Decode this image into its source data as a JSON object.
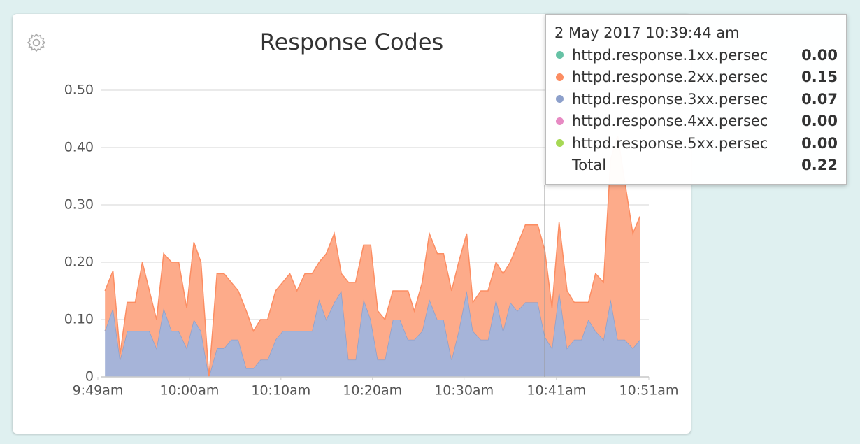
{
  "chart_data": {
    "type": "stacked_area",
    "title": "Response Codes",
    "xlim": [
      49,
      111
    ],
    "xticks": [
      {
        "value": 49,
        "label": "9:49am"
      },
      {
        "value": 59.3,
        "label": "10:00am"
      },
      {
        "value": 69.6,
        "label": "10:10am"
      },
      {
        "value": 79.9,
        "label": "10:20am"
      },
      {
        "value": 90.2,
        "label": "10:30am"
      },
      {
        "value": 100.6,
        "label": "10:41am"
      },
      {
        "value": 111,
        "label": "10:51am"
      }
    ],
    "ylim": [
      0,
      0.5
    ],
    "yticks": [
      0,
      {
        "value": 0.1,
        "label": "0.10"
      },
      {
        "value": 0.2,
        "label": "0.20"
      },
      {
        "value": 0.3,
        "label": "0.30"
      },
      {
        "value": 0.4,
        "label": "0.40"
      },
      {
        "value": 0.5,
        "label": "0.50"
      }
    ],
    "grid": true,
    "x": [
      49.8,
      50.7,
      51.5,
      52.3,
      53.2,
      54.0,
      54.8,
      55.6,
      56.4,
      57.3,
      58.1,
      59.0,
      59.8,
      60.6,
      61.5,
      62.4,
      63.2,
      64.0,
      64.8,
      65.7,
      66.5,
      67.3,
      68.1,
      69.0,
      69.8,
      70.6,
      71.4,
      72.3,
      73.1,
      73.9,
      74.7,
      75.6,
      76.4,
      77.2,
      78.0,
      78.9,
      79.7,
      80.5,
      81.3,
      82.2,
      83.0,
      83.9,
      84.6,
      85.5,
      86.3,
      87.2,
      87.9,
      88.8,
      89.6,
      90.5,
      91.2,
      92.1,
      92.9,
      93.8,
      94.6,
      95.4,
      96.2,
      97.1,
      97.9,
      98.5,
      99.3,
      100.1,
      100.9,
      101.8,
      102.6,
      103.4,
      104.2,
      105.0,
      105.9,
      106.7,
      107.5,
      108.3,
      109.2,
      110.0
    ],
    "series": [
      {
        "name": "httpd.response.3xx.persec",
        "color": "#8da0cb",
        "fill": "#a6b4d9",
        "values": [
          0.08,
          0.12,
          0.03,
          0.08,
          0.08,
          0.08,
          0.08,
          0.05,
          0.12,
          0.08,
          0.08,
          0.05,
          0.1,
          0.08,
          0,
          0.05,
          0.05,
          0.065,
          0.065,
          0.015,
          0.015,
          0.03,
          0.03,
          0.065,
          0.08,
          0.08,
          0.08,
          0.08,
          0.08,
          0.135,
          0.1,
          0.13,
          0.15,
          0.03,
          0.03,
          0.135,
          0.1,
          0.03,
          0.03,
          0.1,
          0.1,
          0.065,
          0.065,
          0.08,
          0.135,
          0.1,
          0.1,
          0.03,
          0.08,
          0.15,
          0.08,
          0.065,
          0.065,
          0.135,
          0.08,
          0.13,
          0.115,
          0.13,
          0.13,
          0.13,
          0.07,
          0.05,
          0.15,
          0.05,
          0.065,
          0.065,
          0.1,
          0.08,
          0.065,
          0.135,
          0.065,
          0.065,
          0.05,
          0.065
        ]
      },
      {
        "name": "httpd.response.2xx.persec",
        "color": "#fc8d62",
        "fill": "#fdab8a",
        "values": [
          0.07,
          0.065,
          0.01,
          0.05,
          0.05,
          0.12,
          0.07,
          0.05,
          0.095,
          0.12,
          0.12,
          0.07,
          0.135,
          0.12,
          0,
          0.13,
          0.13,
          0.1,
          0.085,
          0.1,
          0.065,
          0.07,
          0.07,
          0.085,
          0.085,
          0.1,
          0.07,
          0.1,
          0.1,
          0.065,
          0.115,
          0.12,
          0.03,
          0.135,
          0.135,
          0.095,
          0.13,
          0.085,
          0.07,
          0.05,
          0.05,
          0.085,
          0.05,
          0.085,
          0.115,
          0.115,
          0.115,
          0.12,
          0.12,
          0.1,
          0.05,
          0.085,
          0.085,
          0.065,
          0.1,
          0.07,
          0.115,
          0.135,
          0.135,
          0.135,
          0.15,
          0.07,
          0.12,
          0.1,
          0.065,
          0.065,
          0.03,
          0.1,
          0.1,
          0.245,
          0.355,
          0.275,
          0.2,
          0.215
        ]
      }
    ],
    "tooltip": {
      "title": "2 May 2017 10:39:44 am",
      "items": [
        {
          "name": "httpd.response.1xx.persec",
          "color": "#66c2a5",
          "value": 0,
          "value_label": "0.00"
        },
        {
          "name": "httpd.response.2xx.persec",
          "color": "#fc8d62",
          "value": 0.15,
          "value_label": "0.15"
        },
        {
          "name": "httpd.response.3xx.persec",
          "color": "#8da0cb",
          "value": 0.07,
          "value_label": "0.07"
        },
        {
          "name": "httpd.response.4xx.persec",
          "color": "#e78ac3",
          "value": 0,
          "value_label": "0.00"
        },
        {
          "name": "httpd.response.5xx.persec",
          "color": "#a6d854",
          "value": 0,
          "value_label": "0.00"
        }
      ],
      "total_label": "Total",
      "total": 0.22
    }
  }
}
